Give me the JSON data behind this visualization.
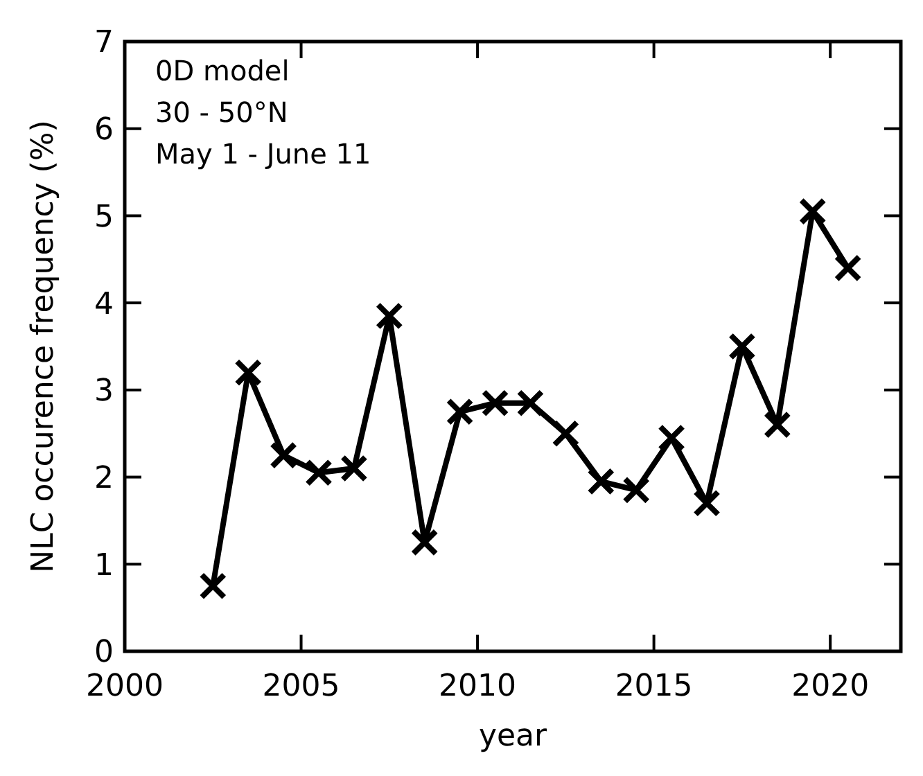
{
  "chart_data": {
    "type": "line",
    "xlabel": "year",
    "ylabel": "NLC occurence frequency (%)",
    "annotations": [
      "0D model",
      "30 - 50°N",
      "May 1 - June 11"
    ],
    "x": [
      2002.5,
      2003.5,
      2004.5,
      2005.5,
      2006.5,
      2007.5,
      2008.5,
      2009.5,
      2010.5,
      2011.5,
      2012.5,
      2013.5,
      2014.5,
      2015.5,
      2016.5,
      2017.5,
      2018.5,
      2019.5,
      2020.5
    ],
    "series": [
      {
        "color": "#000000",
        "values": [
          0.75,
          3.2,
          2.25,
          2.05,
          2.1,
          3.85,
          1.25,
          2.75,
          2.85,
          2.85,
          2.5,
          1.95,
          1.85,
          2.45,
          1.7,
          3.5,
          2.6,
          5.05,
          4.4
        ]
      }
    ],
    "xlim": [
      2000,
      2022
    ],
    "xticks": [
      2000,
      2005,
      2010,
      2015,
      2020
    ],
    "ylim": [
      0,
      7
    ],
    "yticks": [
      0,
      1,
      2,
      3,
      4,
      5,
      6,
      7
    ],
    "marker": "cross",
    "line_style": "solid"
  }
}
